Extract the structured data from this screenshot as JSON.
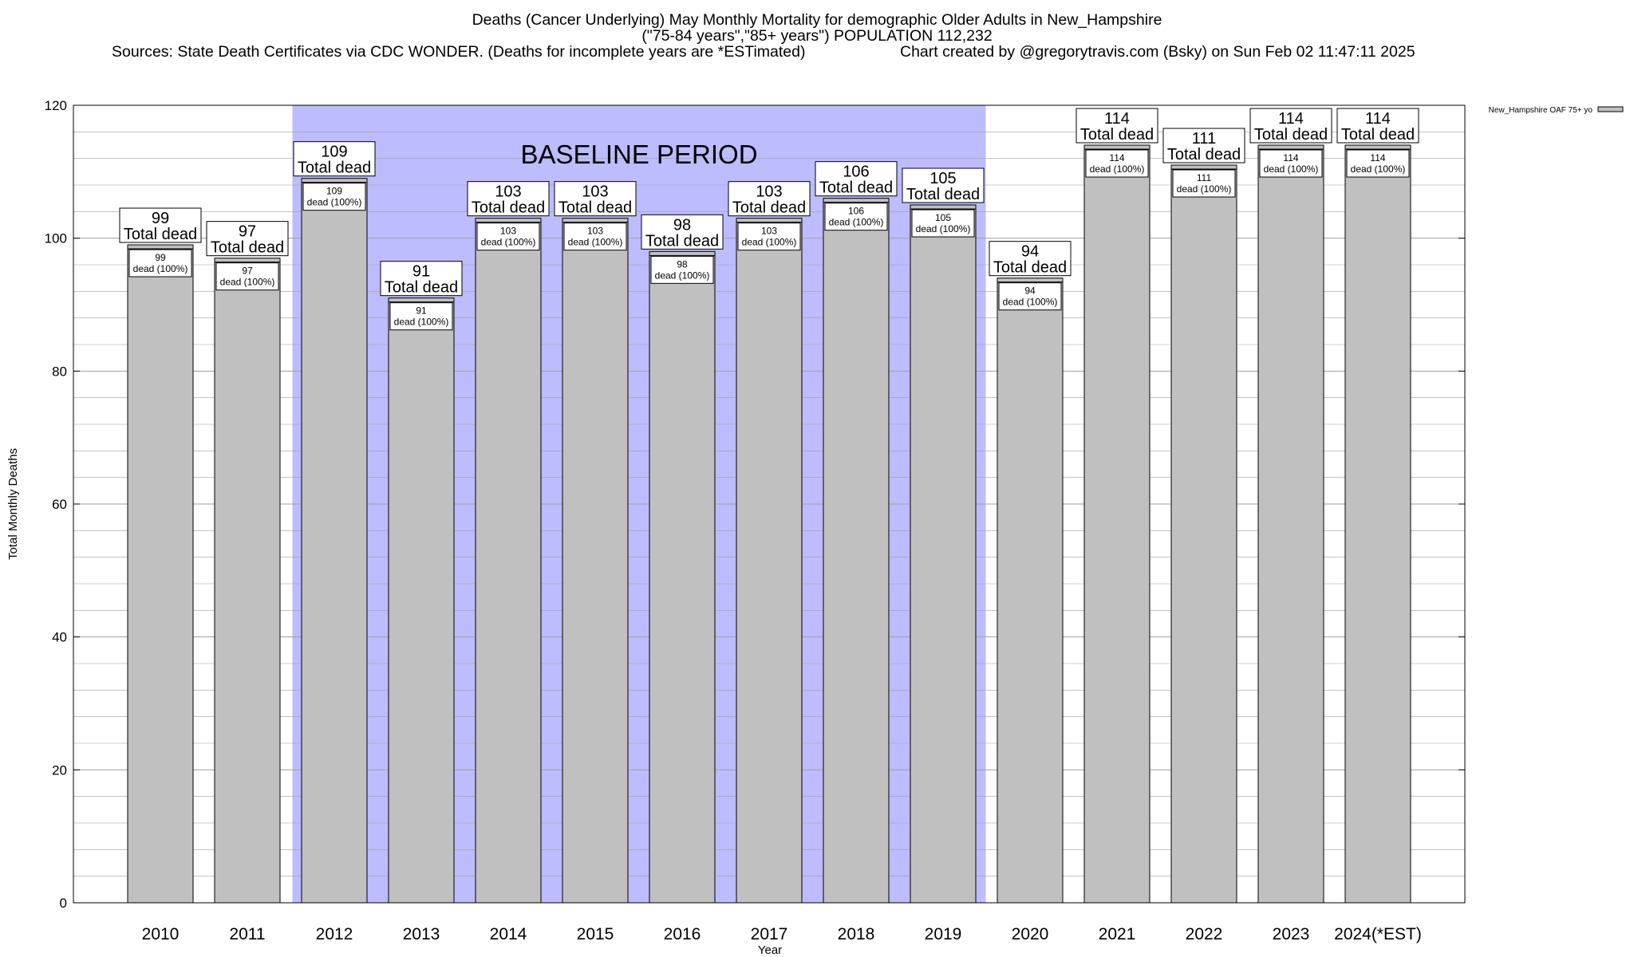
{
  "chart_data": {
    "type": "bar",
    "title": "Deaths (Cancer Underlying) May Monthly Mortality for demographic Older Adults in New_Hampshire",
    "subtitle": "(\"75-84 years\",\"85+ years\") POPULATION 112,232",
    "source_note": "Sources: State Death Certificates via CDC WONDER. (Deaths for incomplete years are *ESTimated)",
    "credit": "Chart created by @gregorytravis.com (Bsky) on Sun Feb 02 11:47:11 2025",
    "xlabel": "Year",
    "ylabel": "Total Monthly Deaths",
    "ylim": [
      0,
      120
    ],
    "yticks": [
      0,
      20,
      40,
      60,
      80,
      100,
      120
    ],
    "minor_grid_step": 4,
    "grid": true,
    "categories": [
      "2010",
      "2011",
      "2012",
      "2013",
      "2014",
      "2015",
      "2016",
      "2017",
      "2018",
      "2019",
      "2020",
      "2021",
      "2022",
      "2023",
      "2024(*EST)"
    ],
    "series": [
      {
        "name": "New_Hampshire OAF 75+ yo",
        "values": [
          99,
          97,
          109,
          91,
          103,
          103,
          98,
          103,
          106,
          105,
          94,
          114,
          111,
          114,
          114
        ]
      }
    ],
    "bar_inner_label": "dead (100%)",
    "bar_total_label": "Total dead",
    "annotation": {
      "text": "BASELINE PERIOD",
      "from_category": "2012",
      "to_category": "2019"
    },
    "legend_position": "top-right",
    "colors": {
      "bar_fill": "#c0c0c0",
      "bar_stroke": "#000000",
      "baseline_band": "#bcbcff",
      "grid": "#a0a0a0"
    }
  }
}
